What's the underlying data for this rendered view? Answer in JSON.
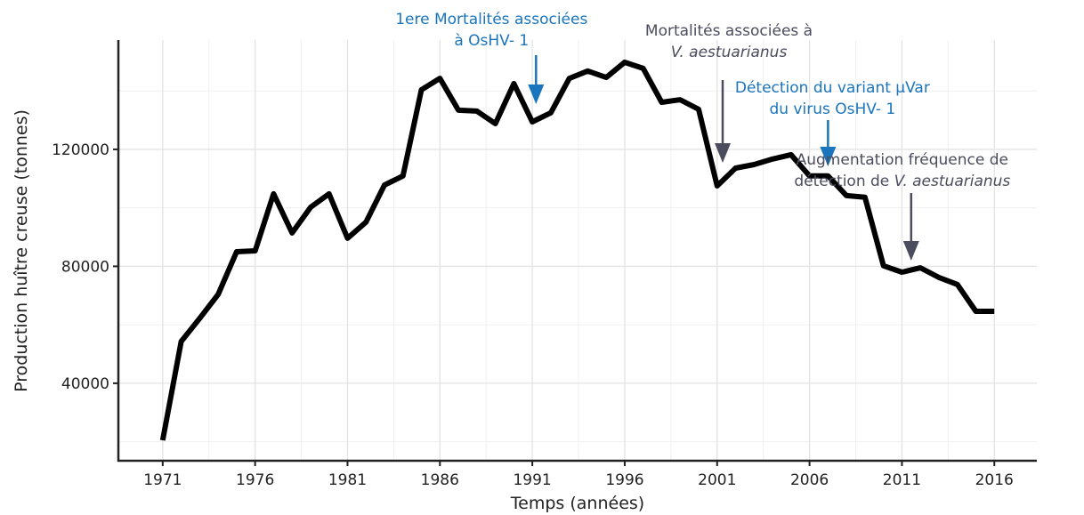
{
  "chart_data": {
    "type": "line",
    "xlabel": "Temps (années)",
    "ylabel": "Production huître creuse (tonnes)",
    "x": [
      1971,
      1972,
      1973,
      1974,
      1975,
      1976,
      1977,
      1978,
      1979,
      1980,
      1981,
      1982,
      1983,
      1984,
      1985,
      1986,
      1987,
      1988,
      1989,
      1990,
      1991,
      1992,
      1993,
      1994,
      1995,
      1996,
      1997,
      1998,
      1999,
      2000,
      2001,
      2002,
      2003,
      2004,
      2005,
      2006,
      2007,
      2008,
      2009,
      2010,
      2011,
      2012,
      2013,
      2014,
      2015,
      2016
    ],
    "series": [
      {
        "color": "#000000",
        "values": [
          20500,
          54300,
          62200,
          70400,
          85000,
          85300,
          104800,
          91400,
          100200,
          104800,
          89600,
          95100,
          107800,
          110900,
          140400,
          144300,
          133400,
          133100,
          128800,
          142500,
          129400,
          132500,
          144300,
          146800,
          144600,
          149800,
          147700,
          136100,
          137000,
          133700,
          107500,
          113600,
          114800,
          116700,
          118200,
          110900,
          110900,
          104200,
          103600,
          80200,
          78000,
          79500,
          76200,
          73800,
          64600,
          64600
        ]
      }
    ],
    "xlim": [
      1968.6,
      2018.3
    ],
    "ylim": [
      13500,
      157400
    ],
    "xticks": [
      1971,
      1976,
      1981,
      1986,
      1991,
      1996,
      2001,
      2006,
      2011,
      2016
    ],
    "yticks": [
      40000,
      80000,
      120000
    ],
    "xminor": [
      1973.5,
      1978.5,
      1983.5,
      1988.5,
      1993.5,
      1998.5,
      2003.5,
      2008.5,
      2013.5
    ],
    "yminor": [
      20000,
      60000,
      100000,
      140000
    ],
    "grid": true,
    "annotations": [
      {
        "x": 1991.2,
        "color": "#1b75bc",
        "lines": [
          [
            {
              "text": "1ere Mortalités associées"
            }
          ],
          [
            {
              "text": "à OsHV- 1"
            }
          ]
        ]
      },
      {
        "x": 2001.3,
        "color": "#4b4c5e",
        "lines": [
          [
            {
              "text": "Mortalités associées à"
            }
          ],
          [
            {
              "text": "V. aestuarianus",
              "italic": true
            }
          ]
        ]
      },
      {
        "x": 2007,
        "color": "#1b75bc",
        "lines": [
          [
            {
              "text": "Détection du variant µVar"
            }
          ],
          [
            {
              "text": "du virus OsHV- 1"
            }
          ]
        ]
      },
      {
        "x": 2011.5,
        "color": "#4b4c5e",
        "lines": [
          [
            {
              "text": "Augmentation fréquence de"
            }
          ],
          [
            {
              "text": "détection de "
            },
            {
              "text": "V. aestuarianus",
              "italic": true
            }
          ]
        ]
      }
    ]
  }
}
